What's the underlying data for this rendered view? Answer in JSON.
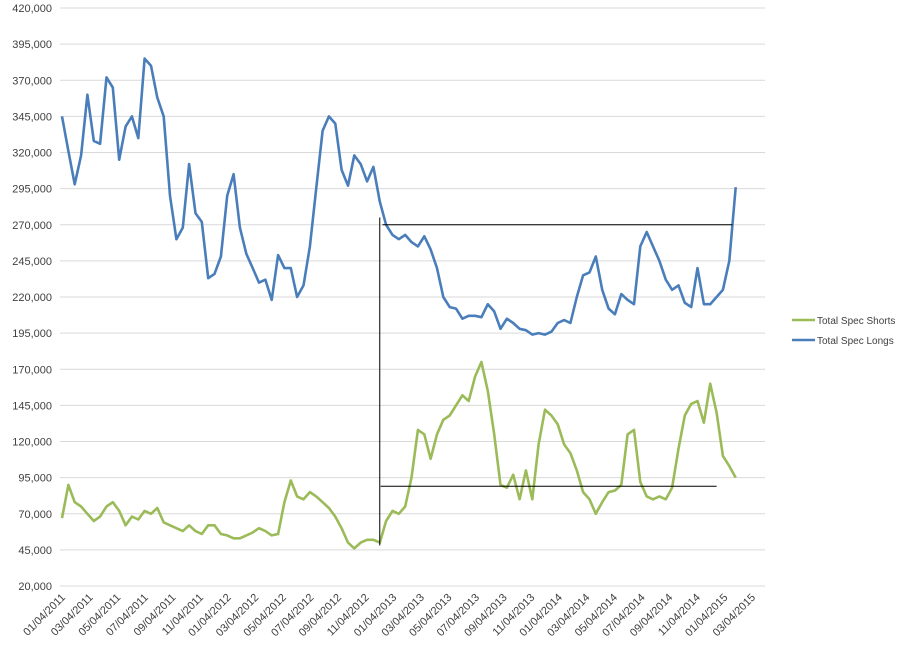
{
  "chart_data": {
    "type": "line",
    "title": "",
    "xlabel": "",
    "ylabel": "",
    "ylim": [
      20000,
      420000
    ],
    "y_ticks": [
      "20,000",
      "45,000",
      "70,000",
      "95,000",
      "120,000",
      "145,000",
      "170,000",
      "195,000",
      "220,000",
      "245,000",
      "270,000",
      "295,000",
      "320,000",
      "345,000",
      "370,000",
      "395,000",
      "420,000"
    ],
    "y_tick_values": [
      20000,
      45000,
      70000,
      95000,
      120000,
      145000,
      170000,
      195000,
      220000,
      245000,
      270000,
      295000,
      320000,
      345000,
      370000,
      395000,
      420000
    ],
    "x_ticks": [
      "01/04/2011",
      "03/04/2011",
      "05/04/2011",
      "07/04/2011",
      "09/04/2011",
      "11/04/2011",
      "01/04/2012",
      "03/04/2012",
      "05/04/2012",
      "07/04/2012",
      "09/04/2012",
      "11/04/2012",
      "01/04/2013",
      "03/04/2013",
      "05/04/2013",
      "07/04/2013",
      "09/04/2013",
      "11/04/2013",
      "01/04/2014",
      "03/04/2014",
      "05/04/2014",
      "07/04/2014",
      "09/04/2014",
      "11/04/2014",
      "01/04/2015",
      "03/04/2015"
    ],
    "x_range": [
      "2011-01-04",
      "2015-03-04"
    ],
    "x_start": "2011-01-04",
    "x_interval_days": 14,
    "grid": true,
    "legend_position": "right",
    "series": [
      {
        "name": "Total Spec Shorts",
        "color": "#9bbb59",
        "values": [
          67000,
          90000,
          78000,
          75000,
          70000,
          65000,
          68000,
          75000,
          78000,
          72000,
          62000,
          68000,
          66000,
          72000,
          70000,
          74000,
          64000,
          62000,
          60000,
          58000,
          62000,
          58000,
          56000,
          62000,
          62000,
          56000,
          55000,
          53000,
          53000,
          55000,
          57000,
          60000,
          58000,
          55000,
          56000,
          78000,
          93000,
          82000,
          80000,
          85000,
          82000,
          78000,
          74000,
          68000,
          60000,
          50000,
          46000,
          50000,
          52000,
          52000,
          50000,
          65000,
          72000,
          70000,
          75000,
          95000,
          128000,
          125000,
          108000,
          125000,
          135000,
          138000,
          145000,
          152000,
          148000,
          165000,
          175000,
          155000,
          125000,
          90000,
          88000,
          97000,
          80000,
          100000,
          80000,
          118000,
          142000,
          138000,
          132000,
          118000,
          112000,
          100000,
          85000,
          80000,
          70000,
          78000,
          85000,
          86000,
          90000,
          125000,
          128000,
          92000,
          82000,
          80000,
          82000,
          80000,
          88000,
          115000,
          138000,
          146000,
          148000,
          133000,
          160000,
          140000,
          110000,
          103000,
          95000
        ]
      },
      {
        "name": "Total Spec Longs",
        "color": "#4a7ebb",
        "values": [
          345000,
          321000,
          298000,
          318000,
          360000,
          328000,
          326000,
          372000,
          365000,
          315000,
          338000,
          345000,
          330000,
          385000,
          380000,
          358000,
          345000,
          290000,
          260000,
          268000,
          312000,
          278000,
          272000,
          233000,
          236000,
          248000,
          290000,
          305000,
          268000,
          250000,
          240000,
          230000,
          232000,
          218000,
          249000,
          240000,
          240000,
          220000,
          228000,
          255000,
          295000,
          335000,
          345000,
          340000,
          308000,
          297000,
          318000,
          312000,
          300000,
          310000,
          286000,
          270000,
          263000,
          260000,
          263000,
          258000,
          255000,
          262000,
          253000,
          240000,
          220000,
          213000,
          212000,
          205000,
          207000,
          207000,
          206000,
          215000,
          210000,
          198000,
          205000,
          202000,
          198000,
          197000,
          194000,
          195000,
          194000,
          196000,
          202000,
          204000,
          202000,
          220000,
          235000,
          237000,
          248000,
          225000,
          212000,
          208000,
          222000,
          218000,
          215000,
          255000,
          265000,
          255000,
          245000,
          232000,
          225000,
          228000,
          216000,
          213000,
          240000,
          215000,
          215000,
          220000,
          225000,
          245000,
          296000
        ]
      }
    ],
    "annotations": [
      {
        "type": "hline",
        "y": 270000,
        "from": "2012-12-10",
        "to": "2015-01-20"
      },
      {
        "type": "vline",
        "x": "2012-12-04",
        "from": 48000,
        "to": 275000
      },
      {
        "type": "hline",
        "y": 89000,
        "from": "2012-12-06",
        "to": "2014-12-16"
      }
    ]
  }
}
